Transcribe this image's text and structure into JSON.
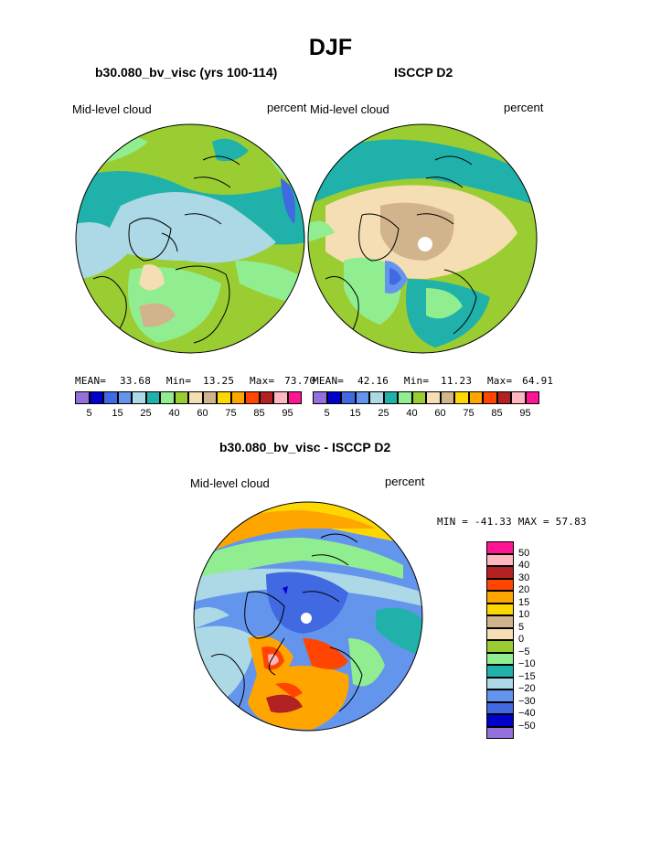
{
  "season": "DJF",
  "panels": [
    {
      "subtitle": "b30.080_bv_visc (yrs 100-114)",
      "left_label": "Mid-level cloud",
      "right_label": "percent",
      "stats": {
        "mean_label": "MEAN=",
        "mean": "33.68",
        "min_label": "Min=",
        "min": "13.25",
        "max_label": "Max=",
        "max": "73.70"
      }
    },
    {
      "subtitle": "ISCCP D2",
      "left_label": "Mid-level cloud",
      "right_label": "percent",
      "stats": {
        "mean_label": "MEAN=",
        "mean": "42.16",
        "min_label": "Min=",
        "min": "11.23",
        "max_label": "Max=",
        "max": "64.91"
      }
    }
  ],
  "abs_colorbar": {
    "colors": [
      "#9370db",
      "#0000cd",
      "#4169e1",
      "#6495ed",
      "#add8e6",
      "#20b2aa",
      "#90ee90",
      "#9acd32",
      "#f5deb3",
      "#d2b48c",
      "#ffd700",
      "#ffa500",
      "#ff4500",
      "#b22222",
      "#ffb6c1",
      "#ff1493"
    ],
    "tick_labels": [
      "5",
      "15",
      "25",
      "40",
      "60",
      "75",
      "85",
      "95"
    ]
  },
  "diff": {
    "title": "b30.080_bv_visc - ISCCP D2",
    "left_label": "Mid-level cloud",
    "right_label": "percent",
    "minmax": "MIN = -41.33 MAX =  57.83",
    "colorbar": {
      "colors": [
        "#ff1493",
        "#ffb6c1",
        "#b22222",
        "#ff4500",
        "#ffa500",
        "#ffd700",
        "#d2b48c",
        "#f5deb3",
        "#9acd32",
        "#90ee90",
        "#20b2aa",
        "#add8e6",
        "#6495ed",
        "#4169e1",
        "#0000cd",
        "#9370db"
      ],
      "labels": [
        "50",
        "40",
        "30",
        "20",
        "15",
        "10",
        "5",
        "0",
        "-5",
        "-10",
        "-15",
        "-20",
        "-30",
        "-40",
        "-50"
      ]
    }
  }
}
